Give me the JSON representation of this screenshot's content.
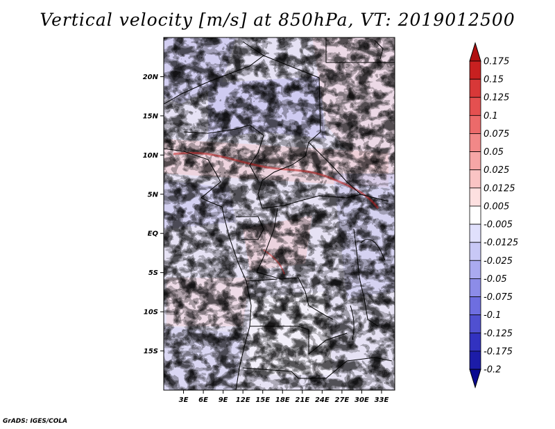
{
  "title": "Vertical velocity [m/s] at 850hPa, VT: 2019012500",
  "credit": "GrADS: IGES/COLA",
  "map": {
    "lon_range": [
      0,
      35
    ],
    "lat_range": [
      -20,
      25
    ],
    "lat_ticks": [
      {
        "lat": 20,
        "label": "20N"
      },
      {
        "lat": 15,
        "label": "15N"
      },
      {
        "lat": 10,
        "label": "10N"
      },
      {
        "lat": 5,
        "label": "5N"
      },
      {
        "lat": 0,
        "label": "EQ"
      },
      {
        "lat": -5,
        "label": "5S"
      },
      {
        "lat": -10,
        "label": "10S"
      },
      {
        "lat": -15,
        "label": "15S"
      }
    ],
    "lon_ticks": [
      {
        "lon": 3,
        "label": "3E"
      },
      {
        "lon": 6,
        "label": "6E"
      },
      {
        "lon": 9,
        "label": "9E"
      },
      {
        "lon": 12,
        "label": "12E"
      },
      {
        "lon": 15,
        "label": "15E"
      },
      {
        "lon": 18,
        "label": "18E"
      },
      {
        "lon": 21,
        "label": "21E"
      },
      {
        "lon": 24,
        "label": "24E"
      },
      {
        "lon": 27,
        "label": "27E"
      },
      {
        "lon": 30,
        "label": "30E"
      },
      {
        "lon": 33,
        "label": "33E"
      }
    ]
  },
  "colorbar": {
    "levels": [
      "0.175",
      "0.15",
      "0.125",
      "0.1",
      "0.075",
      "0.05",
      "0.025",
      "0.0125",
      "0.005",
      "-0.005",
      "-0.0125",
      "-0.025",
      "-0.05",
      "-0.075",
      "-0.1",
      "-0.125",
      "-0.175",
      "-0.2"
    ],
    "colors": [
      "#b01010",
      "#c82020",
      "#d83838",
      "#e45050",
      "#ec6a6a",
      "#f28888",
      "#f6a6a6",
      "#fac4c4",
      "#fde0e0",
      "#ffffff",
      "#e0e0fc",
      "#c8c8f6",
      "#aaaaf0",
      "#8c8ce8",
      "#6e6ee0",
      "#5050d0",
      "#3232c0",
      "#1c1ca8",
      "#0a0a90"
    ]
  }
}
